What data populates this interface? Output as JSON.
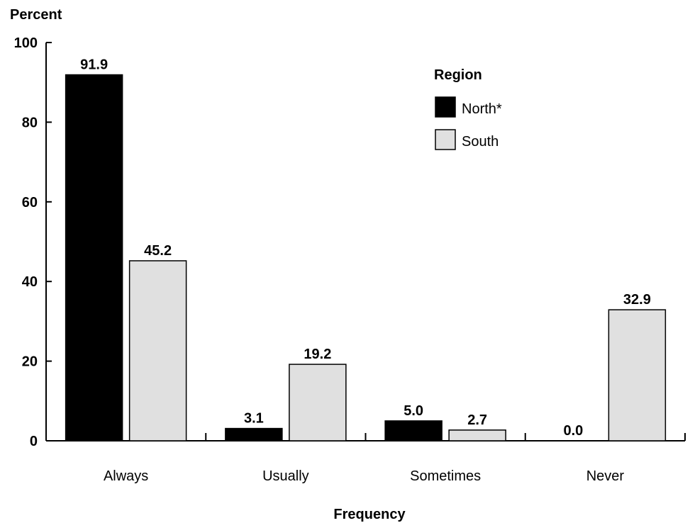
{
  "chart_data": {
    "type": "bar",
    "title": "",
    "ylabel": "Percent",
    "xlabel": "Frequency",
    "ylim": [
      0,
      100
    ],
    "yticks": [
      0,
      20,
      40,
      60,
      80,
      100
    ],
    "categories": [
      "Always",
      "Usually",
      "Sometimes",
      "Never"
    ],
    "series": [
      {
        "name": "North*",
        "color": "#000000",
        "values": [
          91.9,
          3.1,
          5.0,
          0.0
        ],
        "labels": [
          "91.9",
          "3.1",
          "5.0",
          "0.0"
        ]
      },
      {
        "name": "South",
        "color": "#e0e0e0",
        "values": [
          45.2,
          19.2,
          2.7,
          32.9
        ],
        "labels": [
          "45.2",
          "19.2",
          "2.7",
          "32.9"
        ]
      }
    ],
    "legend": {
      "title": "Region",
      "position": "top-right"
    },
    "grid": false
  }
}
